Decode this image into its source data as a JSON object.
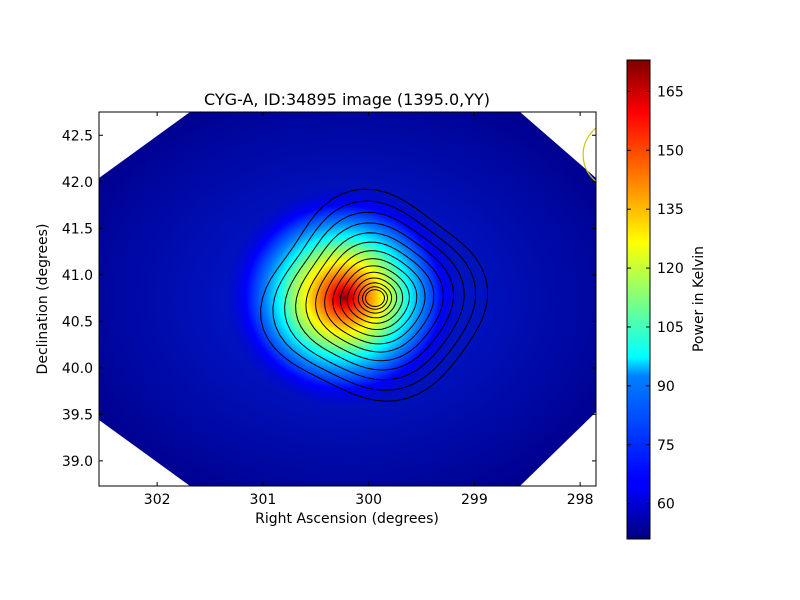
{
  "chart_data": {
    "type": "heatmap",
    "title": "CYG-A, ID:34895 image (1395.0,YY)",
    "xlabel": "Right Ascension (degrees)",
    "ylabel": "Declination (degrees)",
    "xlim": [
      302.55,
      297.85
    ],
    "ylim": [
      38.73,
      42.75
    ],
    "x_ticks": [
      302,
      301,
      300,
      299,
      298
    ],
    "x_tick_labels": [
      "302",
      "301",
      "300",
      "299",
      "298"
    ],
    "y_ticks": [
      39.0,
      39.5,
      40.0,
      40.5,
      41.0,
      41.5,
      42.0,
      42.5
    ],
    "y_tick_labels": [
      "39.0",
      "39.5",
      "40.0",
      "40.5",
      "41.0",
      "41.5",
      "42.0",
      "42.5"
    ],
    "colormap": "jet",
    "source_peak": {
      "ra": 299.94,
      "dec": 40.75,
      "value": 172
    },
    "background_value": 51,
    "contour_levels": 14,
    "beam_marker": {
      "ra": 297.65,
      "dec": 42.29,
      "color": "#c8c800"
    },
    "colorbar": {
      "label": "Power in Kelvin",
      "range": [
        51,
        173
      ],
      "ticks": [
        60,
        75,
        90,
        105,
        120,
        135,
        150,
        165
      ],
      "tick_labels": [
        "60",
        "75",
        "90",
        "105",
        "120",
        "135",
        "150",
        "165"
      ]
    }
  }
}
